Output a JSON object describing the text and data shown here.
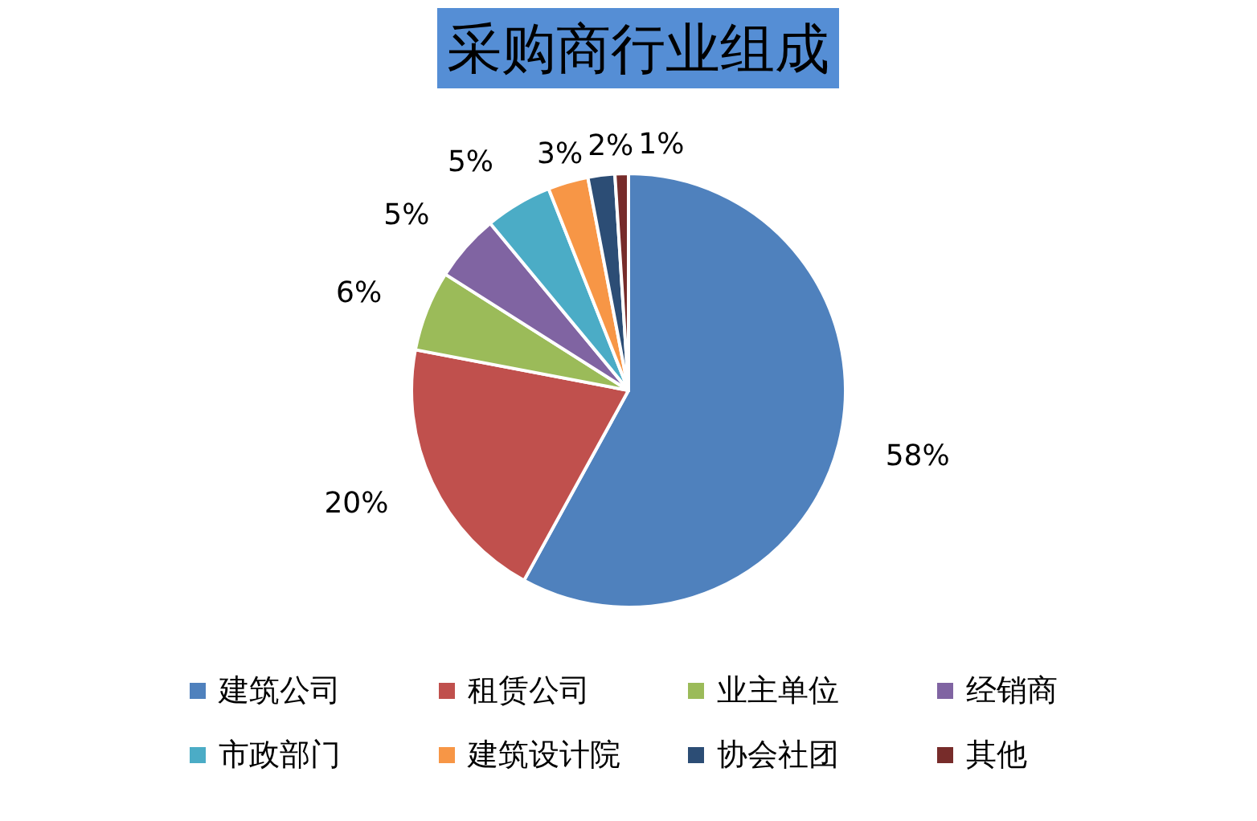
{
  "chart_data": {
    "type": "pie",
    "title": "采购商行业组成",
    "categories": [
      "建筑公司",
      "租赁公司",
      "业主单位",
      "经销商",
      "市政部门",
      "建筑设计院",
      "协会社团",
      "其他"
    ],
    "values": [
      58,
      20,
      6,
      5,
      5,
      3,
      2,
      1
    ],
    "value_labels": [
      "58%",
      "20%",
      "6%",
      "5%",
      "5%",
      "3%",
      "2%",
      "1%"
    ],
    "colors": [
      "#4f81bd",
      "#c0504d",
      "#9bbb59",
      "#8064a2",
      "#4bacc6",
      "#f79646",
      "#2c4d75",
      "#772c2a"
    ],
    "legend": "bottom"
  }
}
